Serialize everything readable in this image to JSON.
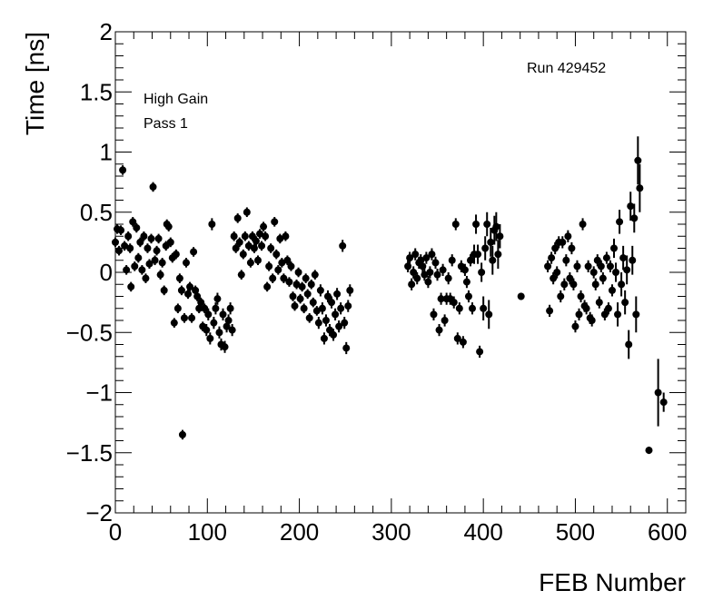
{
  "chart_data": {
    "type": "scatter",
    "title": "",
    "xlabel": "FEB Number",
    "ylabel": "Time [ns]",
    "xlim": [
      0,
      620
    ],
    "ylim": [
      -2,
      2
    ],
    "xticks": [
      0,
      100,
      200,
      300,
      400,
      500,
      600
    ],
    "yticks": [
      -2,
      -1.5,
      -1,
      -0.5,
      0,
      0.5,
      1,
      1.5,
      2
    ],
    "xtick_labels": [
      "0",
      "100",
      "200",
      "300",
      "400",
      "500",
      "600"
    ],
    "ytick_labels": [
      "−2",
      "−1.5",
      "−1",
      "−0.5",
      "0",
      "0.5",
      "1",
      "1.5",
      "2"
    ],
    "grid": false,
    "marker_color": "#000000",
    "annotations": {
      "run": "Run 429452",
      "gain": "High Gain",
      "pass": "Pass 1"
    },
    "series": [
      {
        "points": [
          [
            0,
            0.25,
            0.04
          ],
          [
            2,
            0.36,
            0.04
          ],
          [
            4,
            0.18,
            0.04
          ],
          [
            6,
            0.35,
            0.04
          ],
          [
            8,
            0.85,
            0.04
          ],
          [
            10,
            0.22,
            0.04
          ],
          [
            12,
            0.02,
            0.04
          ],
          [
            14,
            0.3,
            0.04
          ],
          [
            16,
            0.2,
            0.04
          ],
          [
            17,
            -0.12,
            0.04
          ],
          [
            19,
            0.42,
            0.04
          ],
          [
            21,
            0.05,
            0.04
          ],
          [
            23,
            0.37,
            0.04
          ],
          [
            25,
            0.12,
            0.04
          ],
          [
            27,
            0.25,
            0.04
          ],
          [
            29,
            0.02,
            0.04
          ],
          [
            31,
            0.3,
            0.04
          ],
          [
            33,
            -0.05,
            0.04
          ],
          [
            35,
            0.2,
            0.04
          ],
          [
            37,
            0.07,
            0.04
          ],
          [
            39,
            0.28,
            0.04
          ],
          [
            41,
            0.71,
            0.04
          ],
          [
            43,
            0.1,
            0.04
          ],
          [
            45,
            0.18,
            0.04
          ],
          [
            47,
            0.28,
            0.04
          ],
          [
            49,
            -0.02,
            0.04
          ],
          [
            51,
            0.08,
            0.04
          ],
          [
            53,
            -0.15,
            0.04
          ],
          [
            55,
            0.22,
            0.04
          ],
          [
            56,
            0.4,
            0.04
          ],
          [
            58,
            0.38,
            0.04
          ],
          [
            60,
            0.25,
            0.04
          ],
          [
            62,
            0.12,
            0.04
          ],
          [
            64,
            -0.42,
            0.04
          ],
          [
            66,
            0.15,
            0.04
          ],
          [
            68,
            -0.3,
            0.04
          ],
          [
            70,
            -0.05,
            0.04
          ],
          [
            72,
            -0.15,
            0.04
          ],
          [
            73,
            -1.35,
            0.04
          ],
          [
            75,
            -0.38,
            0.04
          ],
          [
            77,
            0.08,
            0.04
          ],
          [
            79,
            -0.18,
            0.04
          ],
          [
            81,
            -0.12,
            0.04
          ],
          [
            83,
            -0.38,
            0.04
          ],
          [
            85,
            0.17,
            0.04
          ],
          [
            87,
            -0.15,
            0.04
          ],
          [
            89,
            -0.2,
            0.04
          ],
          [
            91,
            -0.3,
            0.04
          ],
          [
            93,
            -0.25,
            0.04
          ],
          [
            95,
            -0.45,
            0.04
          ],
          [
            97,
            -0.3,
            0.04
          ],
          [
            99,
            -0.48,
            0.05
          ],
          [
            101,
            -0.35,
            0.05
          ],
          [
            103,
            -0.55,
            0.05
          ],
          [
            105,
            0.4,
            0.05
          ],
          [
            107,
            -0.42,
            0.05
          ],
          [
            109,
            -0.3,
            0.05
          ],
          [
            111,
            -0.22,
            0.05
          ],
          [
            113,
            -0.5,
            0.05
          ],
          [
            115,
            -0.6,
            0.05
          ],
          [
            117,
            -0.35,
            0.05
          ],
          [
            119,
            -0.62,
            0.05
          ],
          [
            121,
            -0.45,
            0.05
          ],
          [
            123,
            -0.4,
            0.05
          ],
          [
            125,
            -0.3,
            0.05
          ],
          [
            127,
            -0.48,
            0.05
          ],
          [
            129,
            0.3,
            0.04
          ],
          [
            131,
            0.2,
            0.04
          ],
          [
            133,
            0.45,
            0.04
          ],
          [
            135,
            0.25,
            0.04
          ],
          [
            137,
            -0.02,
            0.04
          ],
          [
            139,
            0.15,
            0.04
          ],
          [
            141,
            0.3,
            0.04
          ],
          [
            143,
            0.5,
            0.04
          ],
          [
            145,
            0.22,
            0.04
          ],
          [
            147,
            0.08,
            0.04
          ],
          [
            149,
            0.3,
            0.04
          ],
          [
            151,
            0.2,
            0.04
          ],
          [
            153,
            0.26,
            0.04
          ],
          [
            155,
            0.1,
            0.04
          ],
          [
            157,
            0.32,
            0.04
          ],
          [
            159,
            0.22,
            0.04
          ],
          [
            161,
            0.38,
            0.04
          ],
          [
            163,
            0.3,
            0.04
          ],
          [
            165,
            -0.12,
            0.04
          ],
          [
            167,
            0.05,
            0.04
          ],
          [
            169,
            0.2,
            0.04
          ],
          [
            171,
            -0.05,
            0.04
          ],
          [
            173,
            0.42,
            0.04
          ],
          [
            175,
            0.15,
            0.04
          ],
          [
            177,
            0.02,
            0.04
          ],
          [
            179,
            0.28,
            0.04
          ],
          [
            181,
            0.08,
            0.04
          ],
          [
            183,
            -0.05,
            0.04
          ],
          [
            185,
            0.3,
            0.04
          ],
          [
            187,
            0.1,
            0.04
          ],
          [
            189,
            -0.08,
            0.04
          ],
          [
            191,
            0.05,
            0.04
          ],
          [
            193,
            -0.2,
            0.04
          ],
          [
            195,
            -0.28,
            0.04
          ],
          [
            197,
            -0.1,
            0.04
          ],
          [
            199,
            0.0,
            0.04
          ],
          [
            201,
            -0.22,
            0.04
          ],
          [
            203,
            -0.12,
            0.04
          ],
          [
            205,
            -0.3,
            0.04
          ],
          [
            207,
            -0.05,
            0.04
          ],
          [
            209,
            -0.18,
            0.04
          ],
          [
            211,
            -0.38,
            0.04
          ],
          [
            213,
            -0.1,
            0.04
          ],
          [
            215,
            -0.25,
            0.04
          ],
          [
            217,
            -0.02,
            0.04
          ],
          [
            219,
            -0.32,
            0.04
          ],
          [
            221,
            -0.42,
            0.05
          ],
          [
            223,
            -0.15,
            0.05
          ],
          [
            225,
            -0.3,
            0.05
          ],
          [
            227,
            -0.55,
            0.05
          ],
          [
            229,
            -0.4,
            0.05
          ],
          [
            231,
            -0.2,
            0.05
          ],
          [
            233,
            -0.48,
            0.05
          ],
          [
            235,
            -0.25,
            0.05
          ],
          [
            237,
            -0.52,
            0.05
          ],
          [
            239,
            -0.35,
            0.05
          ],
          [
            241,
            -0.18,
            0.05
          ],
          [
            243,
            -0.45,
            0.05
          ],
          [
            245,
            -0.3,
            0.05
          ],
          [
            247,
            0.22,
            0.05
          ],
          [
            249,
            -0.42,
            0.05
          ],
          [
            251,
            -0.63,
            0.05
          ],
          [
            253,
            -0.28,
            0.05
          ],
          [
            255,
            -0.15,
            0.05
          ],
          [
            318,
            0.05,
            0.05
          ],
          [
            320,
            0.12,
            0.05
          ],
          [
            322,
            -0.1,
            0.05
          ],
          [
            324,
            0.0,
            0.05
          ],
          [
            326,
            0.15,
            0.05
          ],
          [
            328,
            -0.05,
            0.05
          ],
          [
            330,
            0.08,
            0.05
          ],
          [
            332,
            0.1,
            0.05
          ],
          [
            334,
            0.05,
            0.05
          ],
          [
            336,
            -0.02,
            0.05
          ],
          [
            338,
            0.12,
            0.05
          ],
          [
            340,
            -0.08,
            0.05
          ],
          [
            342,
            0.0,
            0.05
          ],
          [
            344,
            0.15,
            0.05
          ],
          [
            346,
            -0.35,
            0.05
          ],
          [
            348,
            0.08,
            0.05
          ],
          [
            350,
            -0.02,
            0.05
          ],
          [
            352,
            -0.48,
            0.05
          ],
          [
            354,
            -0.22,
            0.05
          ],
          [
            356,
            0.02,
            0.05
          ],
          [
            358,
            -0.4,
            0.05
          ],
          [
            360,
            -0.22,
            0.05
          ],
          [
            362,
            -0.05,
            0.05
          ],
          [
            364,
            -0.22,
            0.05
          ],
          [
            366,
            0.1,
            0.05
          ],
          [
            368,
            -0.25,
            0.05
          ],
          [
            370,
            0.4,
            0.05
          ],
          [
            372,
            -0.55,
            0.05
          ],
          [
            374,
            -0.3,
            0.05
          ],
          [
            376,
            0.05,
            0.05
          ],
          [
            378,
            -0.58,
            0.05
          ],
          [
            380,
            0.02,
            0.05
          ],
          [
            382,
            -0.08,
            0.05
          ],
          [
            384,
            -0.2,
            0.05
          ],
          [
            386,
            0.1,
            0.05
          ],
          [
            388,
            -0.3,
            0.05
          ],
          [
            390,
            0.15,
            0.08
          ],
          [
            392,
            0.4,
            0.08
          ],
          [
            394,
            0.15,
            0.08
          ],
          [
            396,
            -0.66,
            0.05
          ],
          [
            398,
            0.0,
            0.08
          ],
          [
            400,
            -0.3,
            0.1
          ],
          [
            402,
            0.2,
            0.1
          ],
          [
            404,
            0.4,
            0.1
          ],
          [
            406,
            -0.35,
            0.12
          ],
          [
            408,
            0.25,
            0.12
          ],
          [
            410,
            0.1,
            0.12
          ],
          [
            412,
            0.35,
            0.12
          ],
          [
            414,
            0.38,
            0.12
          ],
          [
            416,
            0.15,
            0.12
          ],
          [
            418,
            0.3,
            0.1
          ],
          [
            441,
            -0.2,
            0.03
          ],
          [
            470,
            0.05,
            0.05
          ],
          [
            472,
            -0.32,
            0.05
          ],
          [
            474,
            0.12,
            0.05
          ],
          [
            476,
            -0.05,
            0.05
          ],
          [
            478,
            0.2,
            0.05
          ],
          [
            480,
            0.0,
            0.05
          ],
          [
            482,
            0.25,
            0.05
          ],
          [
            484,
            -0.2,
            0.05
          ],
          [
            486,
            0.25,
            0.05
          ],
          [
            488,
            -0.1,
            0.05
          ],
          [
            490,
            0.1,
            0.05
          ],
          [
            492,
            0.3,
            0.05
          ],
          [
            494,
            -0.05,
            0.05
          ],
          [
            496,
            0.2,
            0.05
          ],
          [
            498,
            -0.1,
            0.05
          ],
          [
            500,
            -0.45,
            0.05
          ],
          [
            502,
            0.05,
            0.05
          ],
          [
            504,
            -0.35,
            0.05
          ],
          [
            506,
            -0.2,
            0.05
          ],
          [
            508,
            0.4,
            0.05
          ],
          [
            510,
            -0.28,
            0.05
          ],
          [
            512,
            -0.3,
            0.05
          ],
          [
            514,
            0.05,
            0.05
          ],
          [
            516,
            -0.38,
            0.05
          ],
          [
            518,
            -0.4,
            0.05
          ],
          [
            520,
            0.0,
            0.05
          ],
          [
            522,
            -0.1,
            0.05
          ],
          [
            524,
            0.1,
            0.05
          ],
          [
            526,
            -0.25,
            0.05
          ],
          [
            528,
            0.05,
            0.05
          ],
          [
            530,
            -0.05,
            0.05
          ],
          [
            532,
            -0.35,
            0.05
          ],
          [
            534,
            0.12,
            0.05
          ],
          [
            536,
            -0.3,
            0.05
          ],
          [
            538,
            0.05,
            0.05
          ],
          [
            540,
            -0.15,
            0.05
          ],
          [
            542,
            0.2,
            0.08
          ],
          [
            544,
            0.0,
            0.08
          ],
          [
            546,
            -0.35,
            0.1
          ],
          [
            548,
            0.42,
            0.1
          ],
          [
            550,
            -0.1,
            0.1
          ],
          [
            552,
            0.12,
            0.1
          ],
          [
            554,
            -0.25,
            0.1
          ],
          [
            556,
            0.02,
            0.12
          ],
          [
            558,
            -0.6,
            0.12
          ],
          [
            560,
            0.55,
            0.12
          ],
          [
            562,
            0.1,
            0.12
          ],
          [
            564,
            0.45,
            0.12
          ],
          [
            566,
            -0.35,
            0.15
          ],
          [
            568,
            0.93,
            0.2
          ],
          [
            570,
            0.7,
            0.2
          ],
          [
            580,
            -1.48,
            0.03
          ],
          [
            590,
            -1.0,
            0.28
          ],
          [
            596,
            -1.08,
            0.08
          ]
        ]
      }
    ]
  }
}
